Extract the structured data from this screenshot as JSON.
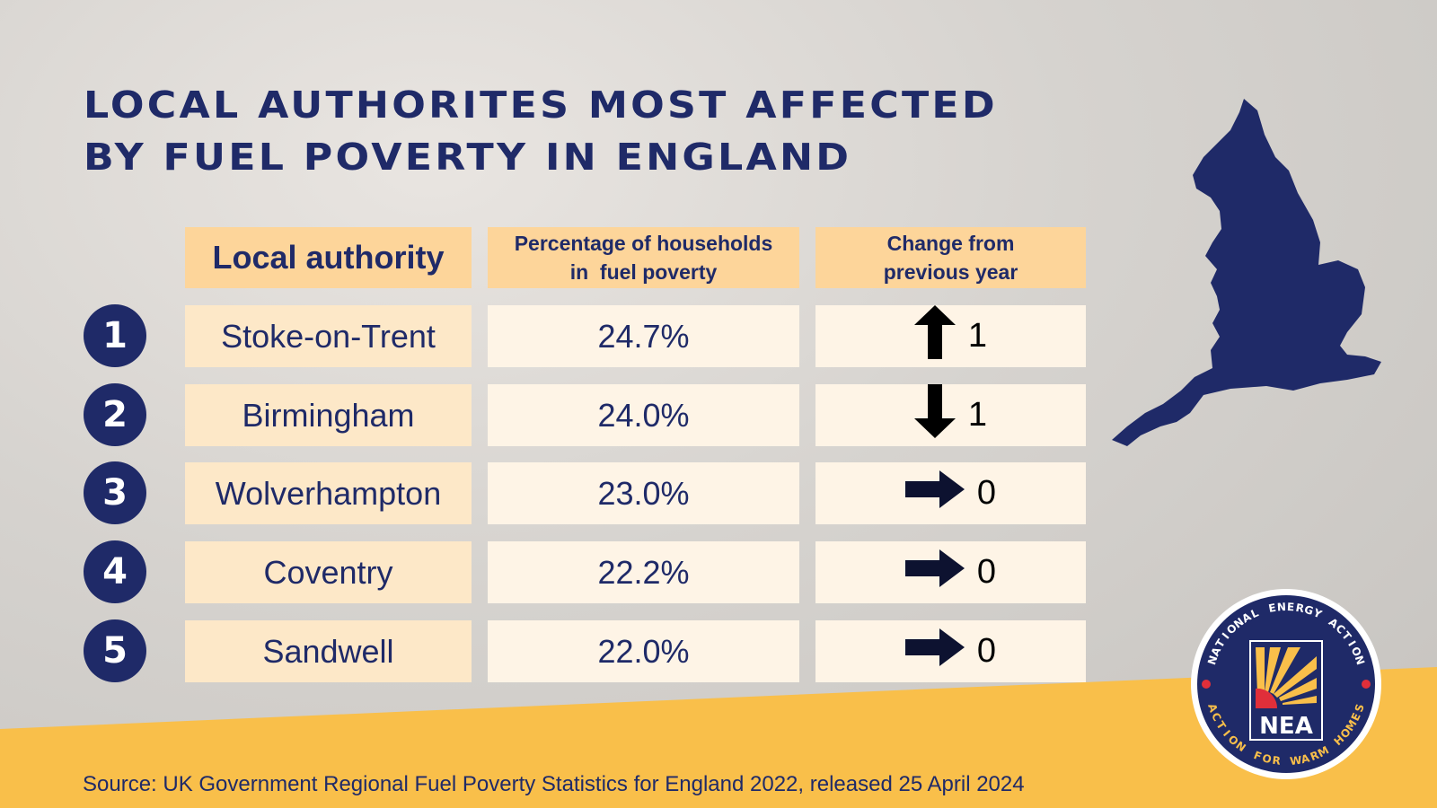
{
  "title": {
    "line1": "Local authorites most affected",
    "line2": "by fuel poverty in England"
  },
  "colors": {
    "navy": "#1f2a68",
    "header": "#fdd59a",
    "accent_yellow": "#f9bf4a",
    "nea_red": "#e02f3a"
  },
  "chart_data": {
    "type": "table",
    "columns": [
      "Local authority",
      "Percentage of households in  fuel poverty",
      "Change from previous year"
    ],
    "header_lines": {
      "pct": [
        "Percentage of households",
        "in  fuel poverty"
      ],
      "change": [
        "Change from",
        "previous year"
      ]
    },
    "rows": [
      {
        "rank": "1",
        "authority": "Stoke-on-Trent",
        "percentage": "24.7%",
        "change_direction": "up",
        "change": "1",
        "icon": "arrow-up-icon"
      },
      {
        "rank": "2",
        "authority": "Birmingham",
        "percentage": "24.0%",
        "change_direction": "down",
        "change": "1",
        "icon": "arrow-down-icon"
      },
      {
        "rank": "3",
        "authority": "Wolverhampton",
        "percentage": "23.0%",
        "change_direction": "none",
        "change": "0",
        "icon": "arrow-right-icon"
      },
      {
        "rank": "4",
        "authority": "Coventry",
        "percentage": "22.2%",
        "change_direction": "none",
        "change": "0",
        "icon": "arrow-right-icon"
      },
      {
        "rank": "5",
        "authority": "Sandwell",
        "percentage": "22.0%",
        "change_direction": "none",
        "change": "0",
        "icon": "arrow-right-icon"
      }
    ]
  },
  "logo": {
    "top_text": "National Energy Action",
    "bottom_text": "Action for warm homes",
    "mark": "NEA"
  },
  "source": "Source: UK Government Regional Fuel Poverty Statistics for England 2022, released 25 April 2024"
}
